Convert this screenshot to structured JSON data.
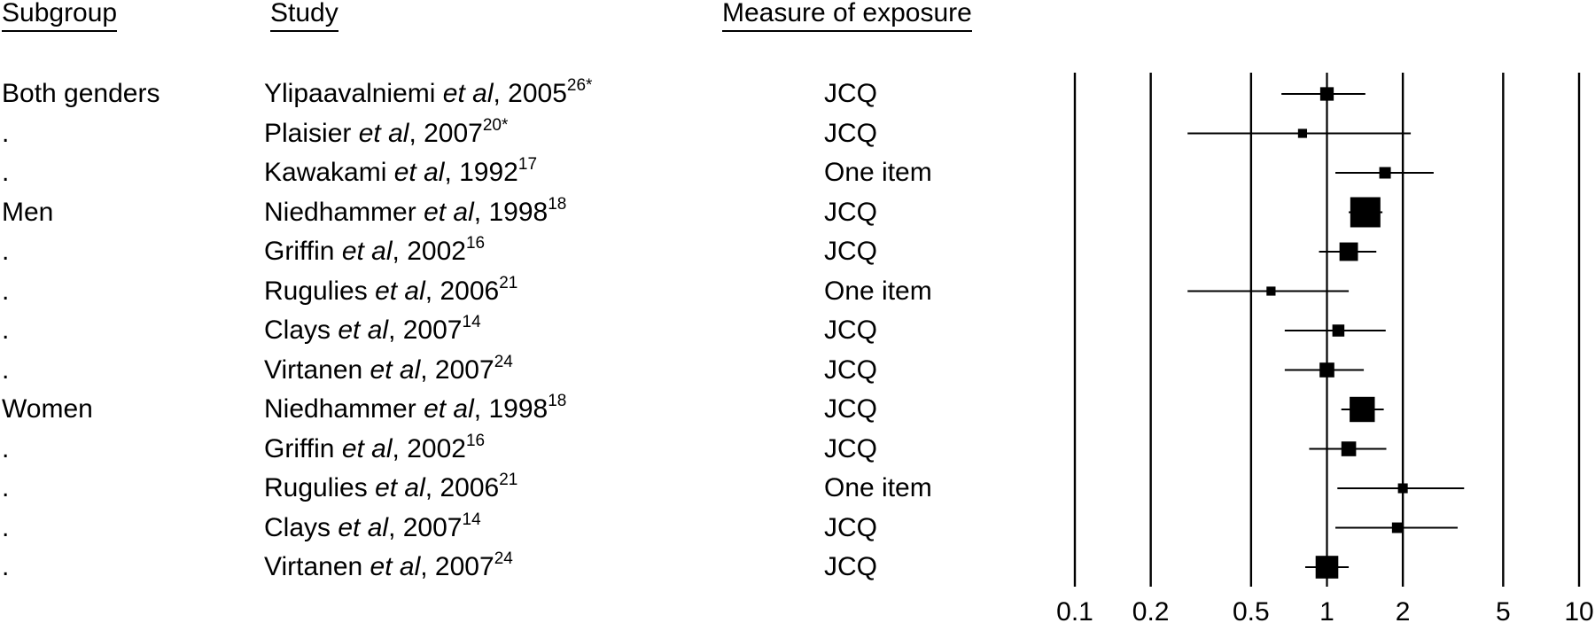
{
  "headers": {
    "subgroup": "Subgroup",
    "study": "Study",
    "measure": "Measure of exposure"
  },
  "rows": [
    {
      "subgroup": "Both genders",
      "author": "Ylipaavalniemi",
      "etal": "et al",
      "year": ", 2005",
      "ref": "26*",
      "measure": "JCQ"
    },
    {
      "subgroup": ".",
      "author": "Plaisier",
      "etal": "et al",
      "year": ", 2007",
      "ref": "20*",
      "measure": "JCQ"
    },
    {
      "subgroup": ".",
      "author": "Kawakami",
      "etal": "et al",
      "year": ", 1992",
      "ref": "17",
      "measure": "One item"
    },
    {
      "subgroup": "Men",
      "author": "Niedhammer",
      "etal": "et al",
      "year": ", 1998",
      "ref": "18",
      "measure": "JCQ"
    },
    {
      "subgroup": ".",
      "author": "Griffin",
      "etal": "et al",
      "year": ", 2002",
      "ref": "16",
      "measure": "JCQ"
    },
    {
      "subgroup": ".",
      "author": "Rugulies",
      "etal": "et al",
      "year": ", 2006",
      "ref": "21",
      "measure": "One item"
    },
    {
      "subgroup": ".",
      "author": "Clays",
      "etal": "et al",
      "year": ", 2007",
      "ref": "14",
      "measure": "JCQ"
    },
    {
      "subgroup": ".",
      "author": "Virtanen",
      "etal": "et al",
      "year": ", 2007",
      "ref": "24",
      "measure": "JCQ"
    },
    {
      "subgroup": "Women",
      "author": "Niedhammer",
      "etal": "et al",
      "year": ", 1998",
      "ref": "18",
      "measure": "JCQ"
    },
    {
      "subgroup": ".",
      "author": "Griffin",
      "etal": "et al",
      "year": ", 2002",
      "ref": "16",
      "measure": "JCQ"
    },
    {
      "subgroup": ".",
      "author": "Rugulies",
      "etal": "et al",
      "year": ", 2006",
      "ref": "21",
      "measure": "One item"
    },
    {
      "subgroup": ".",
      "author": "Clays",
      "etal": "et al",
      "year": ", 2007",
      "ref": "14",
      "measure": "JCQ"
    },
    {
      "subgroup": ".",
      "author": "Virtanen",
      "etal": "et al",
      "year": ", 2007",
      "ref": "24",
      "measure": "JCQ"
    }
  ],
  "chart_data": {
    "type": "scatter",
    "xscale": "log",
    "xlim": [
      0.1,
      10
    ],
    "xticks": [
      0.1,
      0.2,
      0.5,
      1,
      2,
      5,
      10
    ],
    "xtick_labels": [
      "0.1",
      "0.2",
      "0.5",
      "1",
      "2",
      "5",
      "10"
    ],
    "reference_line": 1,
    "gridlines": "vertical at ticks",
    "points": [
      {
        "estimate": 1.0,
        "lower": 0.66,
        "upper": 1.42,
        "weight": 0.33
      },
      {
        "estimate": 0.8,
        "lower": 0.28,
        "upper": 2.15,
        "weight": 0.15
      },
      {
        "estimate": 1.7,
        "lower": 1.08,
        "upper": 2.65,
        "weight": 0.25
      },
      {
        "estimate": 1.42,
        "lower": 1.22,
        "upper": 1.66,
        "weight": 1.0
      },
      {
        "estimate": 1.22,
        "lower": 0.93,
        "upper": 1.57,
        "weight": 0.53
      },
      {
        "estimate": 0.6,
        "lower": 0.28,
        "upper": 1.22,
        "weight": 0.15
      },
      {
        "estimate": 1.11,
        "lower": 0.68,
        "upper": 1.71,
        "weight": 0.27
      },
      {
        "estimate": 1.0,
        "lower": 0.68,
        "upper": 1.4,
        "weight": 0.38
      },
      {
        "estimate": 1.38,
        "lower": 1.14,
        "upper": 1.68,
        "weight": 0.8
      },
      {
        "estimate": 1.22,
        "lower": 0.85,
        "upper": 1.72,
        "weight": 0.38
      },
      {
        "estimate": 2.0,
        "lower": 1.1,
        "upper": 3.5,
        "weight": 0.18
      },
      {
        "estimate": 1.9,
        "lower": 1.08,
        "upper": 3.3,
        "weight": 0.21
      },
      {
        "estimate": 1.0,
        "lower": 0.82,
        "upper": 1.22,
        "weight": 0.7
      }
    ]
  }
}
